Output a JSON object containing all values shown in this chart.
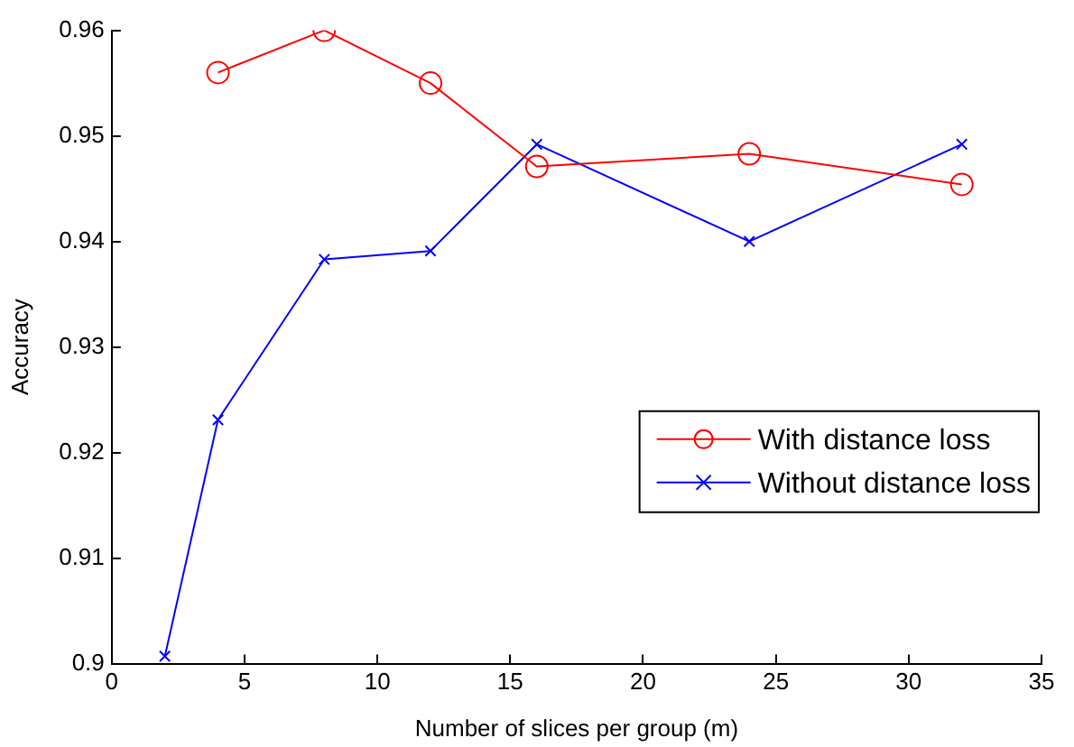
{
  "chart_data": {
    "type": "line",
    "xlabel": "Number of slices per group (m)",
    "ylabel": "Accuracy",
    "xlim": [
      0,
      35
    ],
    "xticks": [
      0,
      5,
      10,
      15,
      20,
      25,
      30,
      35
    ],
    "ylim": [
      0.9,
      0.96
    ],
    "yticks": [
      0.9,
      0.91,
      0.92,
      0.93,
      0.94,
      0.95,
      0.96
    ],
    "grid": false,
    "legend": "right",
    "line_style": "solid",
    "series": [
      {
        "name": "With distance loss",
        "color": "#ff0000",
        "marker": "circle",
        "x": [
          4,
          8,
          12,
          16,
          24,
          32
        ],
        "values": [
          0.956,
          0.96,
          0.955,
          0.9471,
          0.9483,
          0.9454
        ]
      },
      {
        "name": "Without distance loss",
        "color": "#0000ff",
        "marker": "cross",
        "x": [
          2,
          4,
          8,
          12,
          16,
          24,
          32
        ],
        "values": [
          0.9007,
          0.9231,
          0.9383,
          0.9391,
          0.9492,
          0.94,
          0.9492
        ]
      }
    ]
  }
}
